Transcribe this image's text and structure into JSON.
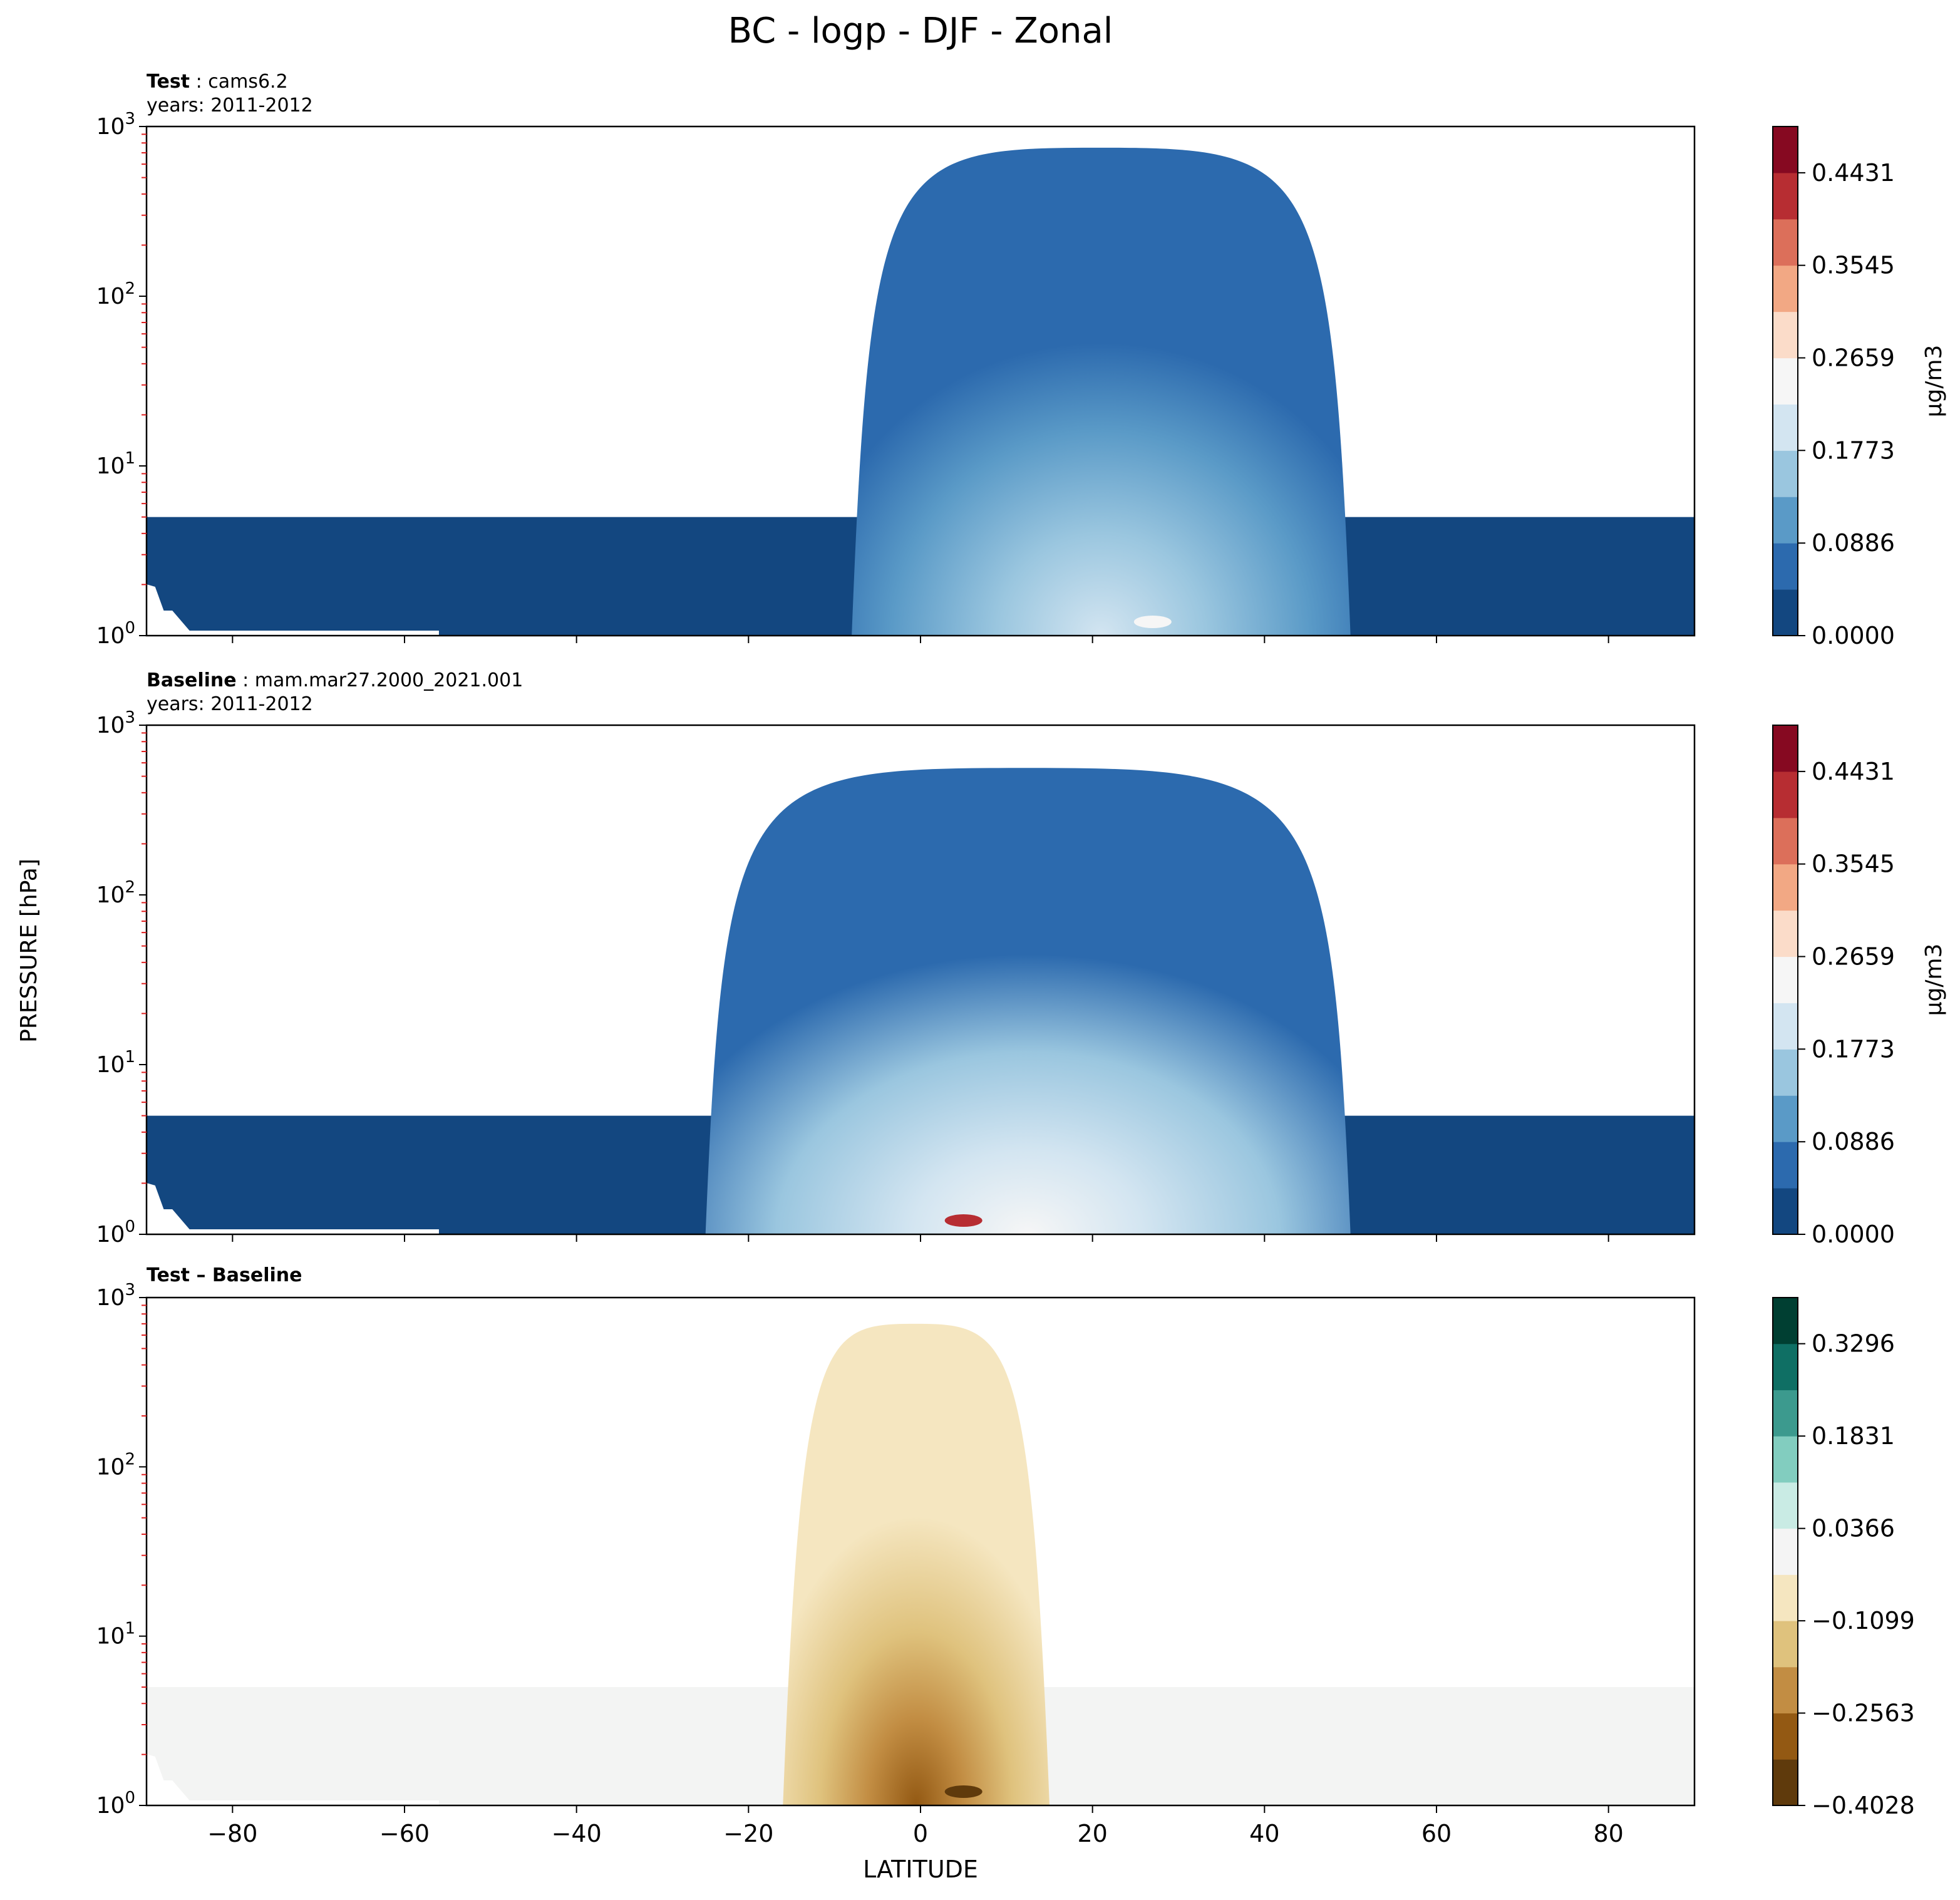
{
  "figure": {
    "title": "BC - logp - DJF - Zonal",
    "ylabel": "PRESSURE [hPa]",
    "xlabel": "LATITUDE"
  },
  "chart_data": [
    {
      "type": "heatmap",
      "panel": "test",
      "title_bold": "Test",
      "title_rest": ": cams6.2",
      "subtitle": "years: 2011-2012",
      "xlim": [
        -90,
        90
      ],
      "ylim": [
        1000,
        1
      ],
      "yscale": "log",
      "yticks": [
        {
          "base": "10",
          "exp": "0"
        },
        {
          "base": "10",
          "exp": "1"
        },
        {
          "base": "10",
          "exp": "2"
        },
        {
          "base": "10",
          "exp": "3"
        }
      ],
      "data_top_hpa": 5,
      "colorbar": {
        "label": "μg/m3",
        "tick_labels": [
          "0.0000",
          "0.0886",
          "0.1773",
          "0.2659",
          "0.3545",
          "0.4431"
        ],
        "tick_values": [
          0.0,
          0.0886,
          0.1773,
          0.2659,
          0.3545,
          0.4431
        ],
        "vmin": 0.0,
        "vmax": 0.4874,
        "colors": [
          "#134780",
          "#2c6aae",
          "#5a9ac7",
          "#9ac6df",
          "#d3e5f1",
          "#f6f6f6",
          "#fbdcc9",
          "#f2a884",
          "#dc6f5a",
          "#b72d32",
          "#860921"
        ]
      },
      "features": [
        {
          "lat_range": [
            -8,
            50
          ],
          "top_hpa": 750,
          "max_value": 0.27,
          "peak_lat": 27
        }
      ]
    },
    {
      "type": "heatmap",
      "panel": "baseline",
      "title_bold": "Baseline",
      "title_rest": ": mam.mar27.2000_2021.001",
      "subtitle": "years: 2011-2012",
      "xlim": [
        -90,
        90
      ],
      "ylim": [
        1000,
        1
      ],
      "yscale": "log",
      "yticks": [
        {
          "base": "10",
          "exp": "0"
        },
        {
          "base": "10",
          "exp": "1"
        },
        {
          "base": "10",
          "exp": "2"
        },
        {
          "base": "10",
          "exp": "3"
        }
      ],
      "data_top_hpa": 5,
      "colorbar": {
        "label": "μg/m3",
        "tick_labels": [
          "0.0000",
          "0.0886",
          "0.1773",
          "0.2659",
          "0.3545",
          "0.4431"
        ],
        "tick_values": [
          0.0,
          0.0886,
          0.1773,
          0.2659,
          0.3545,
          0.4431
        ],
        "vmin": 0.0,
        "vmax": 0.4874,
        "colors": [
          "#134780",
          "#2c6aae",
          "#5a9ac7",
          "#9ac6df",
          "#d3e5f1",
          "#f6f6f6",
          "#fbdcc9",
          "#f2a884",
          "#dc6f5a",
          "#b72d32",
          "#860921"
        ]
      },
      "features": [
        {
          "lat_range": [
            -25,
            50
          ],
          "top_hpa": 560,
          "max_value": 0.48,
          "peak_lat": 5
        }
      ]
    },
    {
      "type": "heatmap",
      "panel": "difference",
      "title_bold": "Test – Baseline",
      "title_rest": "",
      "subtitle": "",
      "xlim": [
        -90,
        90
      ],
      "ylim": [
        1000,
        1
      ],
      "yscale": "log",
      "yticks": [
        {
          "base": "10",
          "exp": "0"
        },
        {
          "base": "10",
          "exp": "1"
        },
        {
          "base": "10",
          "exp": "2"
        },
        {
          "base": "10",
          "exp": "3"
        }
      ],
      "xticks": [
        "−80",
        "−60",
        "−40",
        "−20",
        "0",
        "20",
        "40",
        "60",
        "80"
      ],
      "xtick_values": [
        -80,
        -60,
        -40,
        -20,
        0,
        20,
        40,
        60,
        80
      ],
      "data_top_hpa": 5,
      "colorbar": {
        "label": "",
        "tick_labels": [
          "−0.4028",
          "−0.2563",
          "−0.1099",
          "0.0366",
          "0.1831",
          "0.3296"
        ],
        "tick_values": [
          -0.4028,
          -0.2563,
          -0.1099,
          0.0366,
          0.1831,
          0.3296
        ],
        "vmin": -0.4028,
        "vmax": 0.4028,
        "colors": [
          "#5f3a0c",
          "#935913",
          "#c28d43",
          "#dfc27d",
          "#f5e6c0",
          "#f4f4f4",
          "#c9ebe4",
          "#82cdbf",
          "#3c9a8e",
          "#0f6f64",
          "#003f32"
        ]
      },
      "features": [
        {
          "lat_range": [
            -16,
            15
          ],
          "top_hpa": 700,
          "min_value": -0.4,
          "peak_lat": 5
        }
      ]
    }
  ]
}
